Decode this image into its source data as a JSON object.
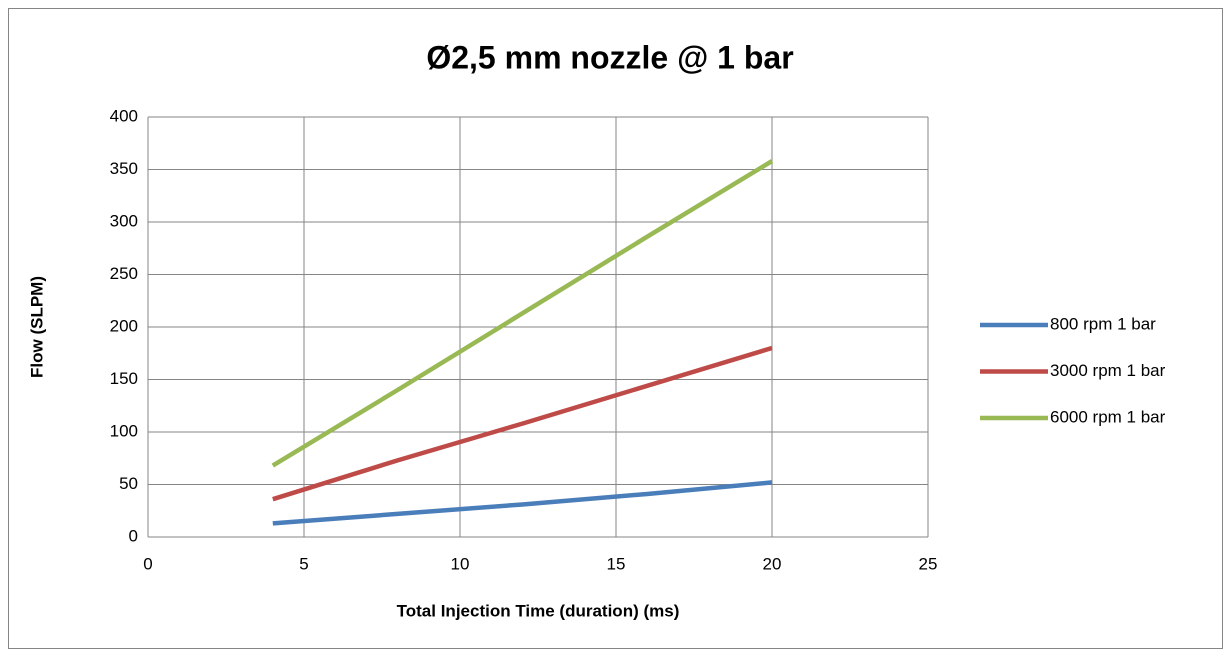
{
  "chart_data": {
    "type": "line",
    "title": "Ø2,5 mm nozzle @ 1 bar",
    "xlabel": "Total Injection Time (duration) (ms)",
    "ylabel": "Flow (SLPM)",
    "x": [
      4,
      8,
      12,
      16,
      20
    ],
    "series": [
      {
        "name": "800 rpm 1 bar",
        "color": "#4a7ebb",
        "values": [
          13,
          22,
          31,
          41,
          52
        ]
      },
      {
        "name": "3000 rpm 1 bar",
        "color": "#be4b48",
        "values": [
          36,
          73,
          108,
          144,
          180
        ]
      },
      {
        "name": "6000 rpm 1 bar",
        "color": "#98b954",
        "values": [
          68,
          140,
          213,
          286,
          358
        ]
      }
    ],
    "xlim": [
      0,
      25
    ],
    "xticks": [
      0,
      5,
      10,
      15,
      20,
      25
    ],
    "ylim": [
      0,
      400
    ],
    "yticks": [
      0,
      50,
      100,
      150,
      200,
      250,
      300,
      350,
      400
    ],
    "grid": true,
    "legend": "right"
  }
}
